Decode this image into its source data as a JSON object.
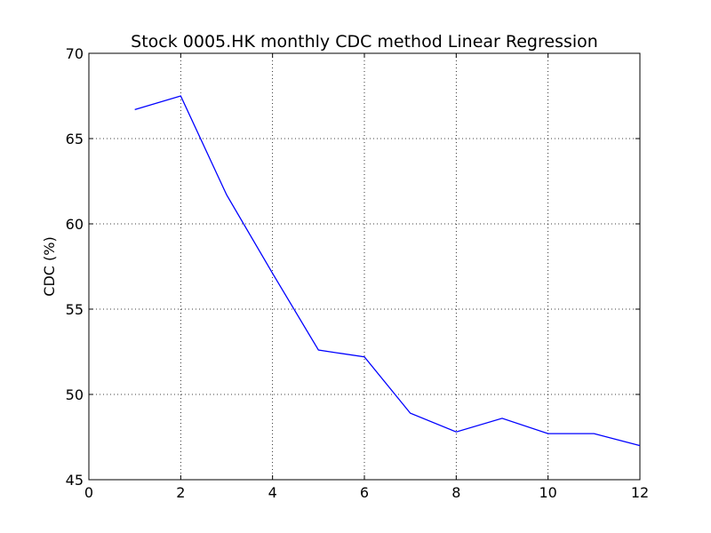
{
  "chart_data": {
    "type": "line",
    "title": "Stock 0005.HK monthly CDC method Linear Regression",
    "xlabel": "",
    "ylabel": "CDC (%)",
    "xlim": [
      0,
      12
    ],
    "ylim": [
      45,
      70
    ],
    "xticks": [
      "0",
      "2",
      "4",
      "6",
      "8",
      "10",
      "12"
    ],
    "yticks": [
      "45",
      "50",
      "55",
      "60",
      "65",
      "70"
    ],
    "grid": true,
    "series": [
      {
        "color": "#0000ff",
        "x": [
          1,
          2,
          3,
          4,
          5,
          6,
          7,
          8,
          9,
          10,
          11,
          12
        ],
        "y": [
          66.7,
          67.5,
          61.7,
          57.1,
          52.6,
          52.2,
          48.9,
          47.8,
          48.6,
          47.7,
          47.7,
          47.0
        ]
      }
    ]
  }
}
